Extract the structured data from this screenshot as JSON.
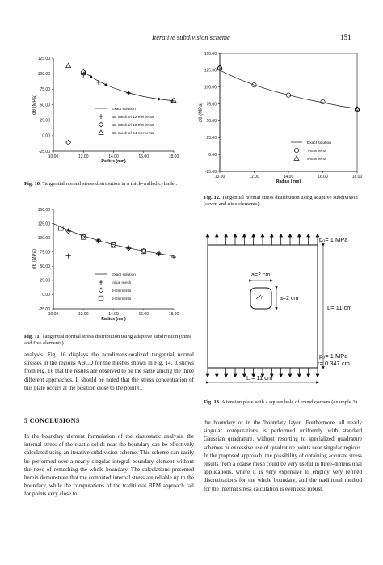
{
  "header": {
    "title": "Iterative subdivision scheme",
    "page": "151"
  },
  "fig10": {
    "caption_label": "Fig. 10.",
    "caption_text": "Tangential normal stress distribution in a thick-walled cylinder.",
    "ylabel": "σθ (MPa)",
    "xlabel": "Radius (mm)",
    "legend": [
      "Exact solution",
      "BE mesh of 12 elements",
      "BE mesh of 18 elements",
      "BE mesh of 24 elements"
    ],
    "chart_data": {
      "type": "line",
      "xlim": [
        10,
        18
      ],
      "ylim": [
        -25,
        125
      ],
      "xticks": [
        "10.00",
        "12.00",
        "14.00",
        "16.00",
        "18.00"
      ],
      "yticks": [
        "-25.00",
        "0.00",
        "25.00",
        "50.00",
        "75.00",
        "100.00",
        "125.00"
      ],
      "series": [
        {
          "name": "Exact solution",
          "x": [
            12,
            12.5,
            13,
            13.5,
            14,
            15,
            16,
            17,
            18
          ],
          "y": [
            103,
            95,
            88,
            82,
            77,
            69,
            63,
            59,
            56
          ]
        },
        {
          "name": "BE mesh of 12 elements",
          "x": [
            12,
            13,
            15,
            17.9
          ],
          "y": [
            98,
            86,
            69,
            56
          ]
        },
        {
          "name": "BE mesh of 18 elements",
          "x": [
            11,
            12
          ],
          "y": [
            -11,
            103
          ]
        },
        {
          "name": "BE mesh of 24 elements",
          "x": [
            11,
            12,
            18
          ],
          "y": [
            113,
            104,
            57
          ]
        }
      ]
    }
  },
  "fig11": {
    "caption_label": "Fig. 11.",
    "caption_text": "Tangential normal stress distribution using adaptive subdivision (three and five elements).",
    "ylabel": "σθ (MPa)",
    "xlabel": "Radius (mm)",
    "legend": [
      "Exact solution",
      "Initial mesh",
      "3-Elements",
      "5-Elements"
    ],
    "chart_data": {
      "type": "line",
      "xlim": [
        10,
        18
      ],
      "ylim": [
        -25,
        150
      ],
      "xticks": [
        "10.00",
        "12.00",
        "14.00",
        "16.00",
        "18.00"
      ],
      "yticks": [
        "-25.00",
        "0.00",
        "25.00",
        "50.00",
        "75.00",
        "100.00",
        "125.00",
        "150.00"
      ],
      "series": [
        {
          "name": "Exact solution",
          "x": [
            10,
            11,
            12,
            13,
            14,
            15,
            16,
            17,
            18
          ],
          "y": [
            125,
            113,
            103,
            95,
            88,
            82,
            77,
            72,
            68
          ]
        },
        {
          "name": "Initial mesh",
          "x": [
            11,
            18
          ],
          "y": [
            68,
            66
          ]
        },
        {
          "name": "3-Elements",
          "x": [
            11,
            12,
            13,
            14,
            15,
            16,
            17
          ],
          "y": [
            112,
            103,
            95,
            88,
            82,
            77,
            72
          ]
        },
        {
          "name": "5-Elements",
          "x": [
            10.5,
            12,
            14,
            16
          ],
          "y": [
            117,
            101,
            87,
            76
          ]
        }
      ]
    }
  },
  "fig12": {
    "caption_label": "Fig. 12.",
    "caption_text": "Tangential normal stress distribution using adaptive subdivision (seven and nine elements).",
    "ylabel": "σθ (MPa)",
    "xlabel": "Radius (mm)",
    "legend": [
      "Exact solution",
      "7-Elements",
      "9-Elements"
    ],
    "chart_data": {
      "type": "line",
      "xlim": [
        10,
        18
      ],
      "ylim": [
        -25,
        150
      ],
      "xticks": [
        "10.00",
        "12.00",
        "14.00",
        "16.00",
        "18.00"
      ],
      "yticks": [
        "-25.00",
        "0.00",
        "25.00",
        "50.00",
        "75.00",
        "100.00",
        "125.00",
        "150.00"
      ],
      "series": [
        {
          "name": "Exact solution",
          "x": [
            10,
            11,
            12,
            13,
            14,
            15,
            16,
            17,
            18
          ],
          "y": [
            125,
            113,
            103,
            95,
            88,
            82,
            77,
            72,
            68
          ]
        },
        {
          "name": "7-Elements",
          "x": [
            10,
            12,
            14,
            16,
            18
          ],
          "y": [
            128,
            103,
            88,
            78,
            67
          ]
        },
        {
          "name": "9-Elements",
          "x": [
            10,
            18
          ],
          "y": [
            130,
            68
          ]
        }
      ]
    }
  },
  "fig13": {
    "caption_label": "Fig. 13.",
    "caption_text": "A tension plate with a square hole of round corners (example 3).",
    "labels": {
      "p_top": "p₀= 1 MPa",
      "a_top": "a=2 cm",
      "a_side": "a=2 cm",
      "L_side": "L= 11 cm",
      "p_bottom": "p₀= 1 MPa",
      "r": "r= 0.347 cm",
      "r_small": "r",
      "L_bottom": "L = 11 cm"
    }
  },
  "left_para": "analysis. Fig. 16 displays the nondimensionalized tangential normal stresses in the regions ABCD for the meshes shown in Fig. 14. It shows from Fig. 16 that the results are observed to be the same among the three different approaches. It should be noted that the stress concentration of this plate occurs at the position close to the point C.",
  "section_title": "5 CONCLUSIONS",
  "conclusions_left": "In the boundary element formulation of the elastostatic analysis, the internal stress of the elastic solids near the boundary can be effectively calculated using an iterative subdivision scheme. This scheme can easily be performed over a nearly singular integral boundary element without the need of remeshing the whole boundary. The calculations presented herein demonstrate that the computed internal stress are reliable up to the boundary, while the computations of the traditional BEM approach fail for points very close to",
  "conclusions_right": "the boundary or in the 'boundary layer'. Furthermore, all nearly singular computations is performed uniformly with standard Gaussian quadrature, without resorting to specialized quadrature schemes or excessive use of quadrature points near singular regions. In the proposed approach, the possibility of obtaining accurate stress results from a coarse mesh could be very useful in three-dimensional applications, where it is very expensive to employ very refined discretizations for the whole boundary, and the traditional method for the internal stress calculation is even less robust."
}
